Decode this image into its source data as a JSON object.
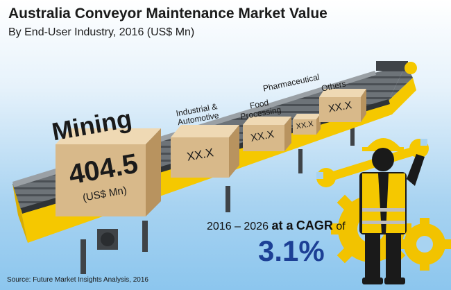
{
  "header": {
    "title": "Australia Conveyor Maintenance Market Value",
    "subtitle": "By End-User Industry, 2016 (US$ Mn)"
  },
  "chart_data": {
    "type": "table",
    "title": "Australia Conveyor Maintenance Market Value",
    "subtitle": "By End-User Industry, 2016 (US$ Mn)",
    "categories": [
      "Mining",
      "Industrial & Automotive",
      "Food Processing",
      "Pharmaceutical",
      "Others"
    ],
    "values": [
      "404.5",
      "XX.X",
      "XX.X",
      "XX.X",
      "XX.X"
    ],
    "unit_label": "(US$ Mn)"
  },
  "cagr": {
    "period": "2016 – 2026",
    "at_a": "at a",
    "label": "CAGR",
    "of": "of",
    "value": "3.1%"
  },
  "source": "Source: Future Market Insights Analysis, 2016",
  "colors": {
    "box_front": "#d8b98a",
    "box_top": "#efd9b4",
    "box_side": "#b8935f",
    "belt": "#666b70",
    "frame": "#f5c800",
    "gear": "#f2c300",
    "cagr_value": "#1c3f95"
  },
  "icons": [
    "conveyor-belt-icon",
    "worker-icon",
    "wrench-icon",
    "gear-icon"
  ]
}
